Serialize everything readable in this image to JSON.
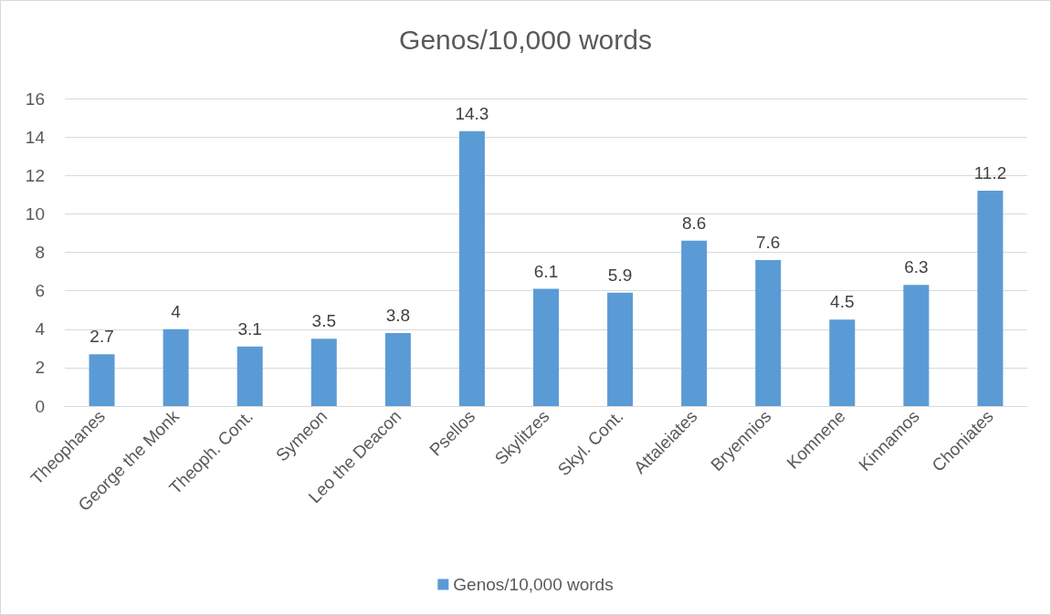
{
  "chart_data": {
    "type": "bar",
    "title": "Genos/10,000 words",
    "categories": [
      "Theophanes",
      "George the Monk",
      "Theoph. Cont.",
      "Symeon",
      "Leo the Deacon",
      "Psellos",
      "Skylitzes",
      "Skyl. Cont.",
      "Attaleiates",
      "Bryennios",
      "Komnene",
      "Kinnamos",
      "Choniates"
    ],
    "series": [
      {
        "name": "Genos/10,000 words",
        "color": "#5b9bd5",
        "values": [
          2.7,
          4,
          3.1,
          3.5,
          3.8,
          14.3,
          6.1,
          5.9,
          8.6,
          7.6,
          4.5,
          6.3,
          11.2
        ]
      }
    ],
    "ylim": [
      0,
      16
    ],
    "yticks": [
      0,
      2,
      4,
      6,
      8,
      10,
      12,
      14,
      16
    ],
    "grid": "y",
    "legend": "bottom",
    "data_labels": true
  }
}
